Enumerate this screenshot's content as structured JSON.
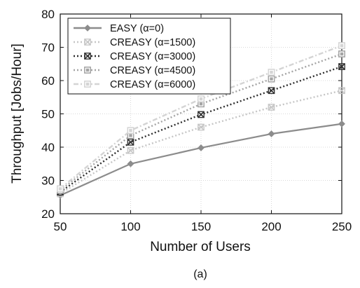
{
  "chart_data": {
    "type": "line",
    "xlabel": "Number of Users",
    "ylabel": "Throughput [Jobs/Hour]",
    "caption": "(a)",
    "x": [
      50,
      100,
      150,
      200,
      250
    ],
    "xlim": [
      50,
      250
    ],
    "ylim": [
      20,
      80
    ],
    "xticks": [
      50,
      100,
      150,
      200,
      250
    ],
    "yticks": [
      20,
      30,
      40,
      50,
      60,
      70,
      80
    ],
    "grid": true,
    "legend_position": "top-left",
    "series": [
      {
        "name": "EASY (α=0)",
        "values": [
          25.5,
          35,
          39.8,
          44,
          47
        ],
        "color": "#8c8c8c",
        "dash": "solid",
        "marker": "diamond"
      },
      {
        "name": "CREASY (α=1500)",
        "values": [
          26,
          39,
          46,
          52,
          57
        ],
        "color": "#c6c6c6",
        "dash": "dotted",
        "marker": "x-box"
      },
      {
        "name": "CREASY (α=3000)",
        "values": [
          26.5,
          41.5,
          49.8,
          57,
          64.2
        ],
        "color": "#2e2e2e",
        "dash": "dotted",
        "marker": "x-box"
      },
      {
        "name": "CREASY (α=4500)",
        "values": [
          27,
          43.5,
          53,
          60.5,
          68
        ],
        "color": "#a4a4a4",
        "dash": "dotted",
        "marker": "square"
      },
      {
        "name": "CREASY (α=6000)",
        "values": [
          27.5,
          45,
          54.5,
          62.5,
          70.5
        ],
        "color": "#d4d4d4",
        "dash": "dashdot",
        "marker": "square"
      }
    ]
  }
}
